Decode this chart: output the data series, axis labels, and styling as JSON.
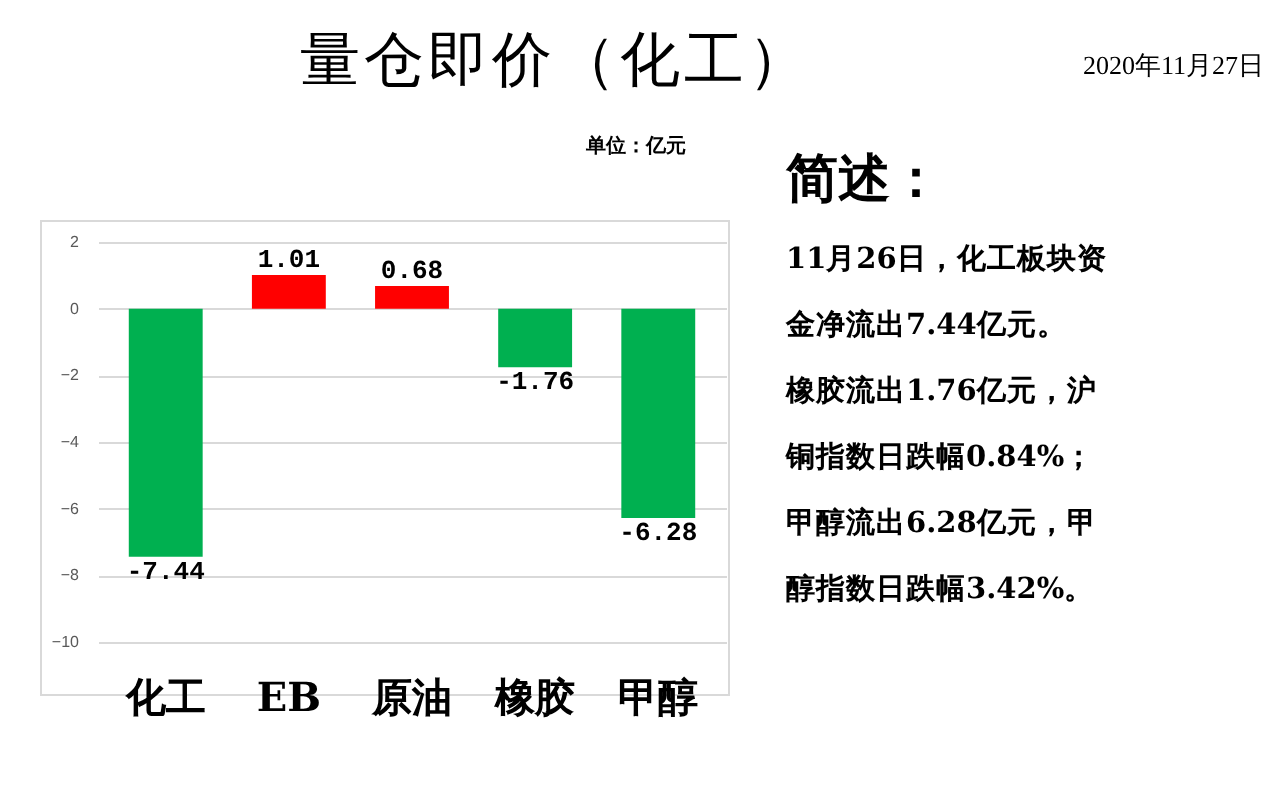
{
  "chart_data": {
    "type": "bar",
    "title": "量仓即价（化工）",
    "categories": [
      "化工",
      "EB",
      "原油",
      "橡胶",
      "甲醇"
    ],
    "values": [
      -7.44,
      1.01,
      0.68,
      -1.76,
      -6.28
    ],
    "colors": [
      "#00b050",
      "#ff0000",
      "#ff0000",
      "#00b050",
      "#00b050"
    ],
    "ylim": [
      -10,
      2
    ],
    "yticks": [
      -10,
      -8,
      -6,
      -4,
      -2,
      0,
      2
    ],
    "grid": "y",
    "data_labels": true,
    "annotations": [
      "2020年11月27日",
      "单位：亿元",
      "简述：",
      "11月26日，化工板块资",
      "金净流出7.44亿元。",
      "橡胶流出1.76亿元，沪",
      "铜指数日跌幅0.84%；",
      "甲醇流出6.28亿元，甲",
      "醇指数日跌幅3.42%。"
    ]
  }
}
